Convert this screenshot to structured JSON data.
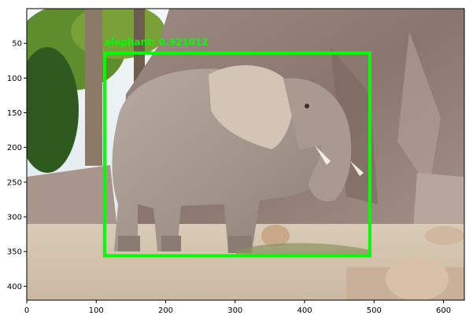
{
  "figure": {
    "xlim": [
      0,
      630
    ],
    "ylim": [
      420,
      0
    ],
    "x_ticks": [
      {
        "value": 0,
        "label": "0"
      },
      {
        "value": 100,
        "label": "100"
      },
      {
        "value": 200,
        "label": "200"
      },
      {
        "value": 300,
        "label": "300"
      },
      {
        "value": 400,
        "label": "400"
      },
      {
        "value": 500,
        "label": "500"
      },
      {
        "value": 600,
        "label": "600"
      }
    ],
    "y_ticks": [
      {
        "value": 50,
        "label": "50"
      },
      {
        "value": 100,
        "label": "100"
      },
      {
        "value": 150,
        "label": "150"
      },
      {
        "value": 200,
        "label": "200"
      },
      {
        "value": 250,
        "label": "250"
      },
      {
        "value": 300,
        "label": "300"
      },
      {
        "value": 350,
        "label": "350"
      },
      {
        "value": 400,
        "label": "400"
      }
    ]
  },
  "detection": {
    "label_text": "elephant: 0.921012",
    "box": {
      "x1": 112,
      "y1": 64,
      "x2": 494,
      "y2": 356
    },
    "color": "#00ff00"
  }
}
